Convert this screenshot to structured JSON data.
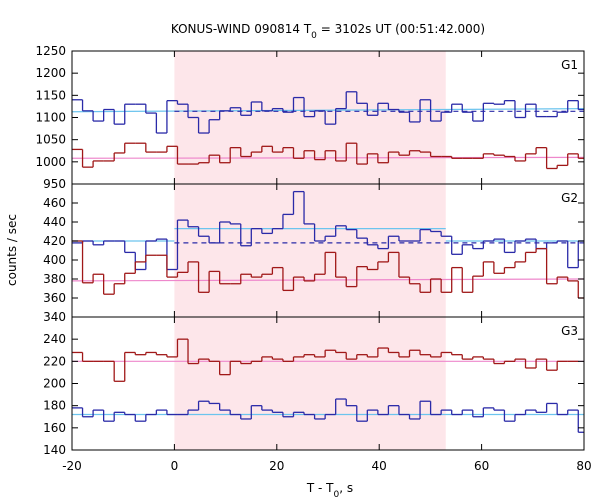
{
  "chart_data": {
    "type": "line",
    "title_main": "KONUS-WIND 090814 T",
    "title_sub": "0",
    "title_rest": " = 3102s UT (00:51:42.000)",
    "xlabel_main": "T - T",
    "xlabel_sub": "0",
    "xlabel_rest": ", s",
    "ylabel": "counts / sec",
    "xlim": [
      -20,
      80
    ],
    "xticks": [
      -20,
      0,
      20,
      40,
      60,
      80
    ],
    "highlight_x": [
      0,
      53
    ],
    "colors": {
      "blue": "#2a2aa8",
      "red": "#a01818",
      "lightblue": "#6cc4ee",
      "pink": "#ee88cc",
      "shade": "#fde6ea"
    },
    "panels": [
      {
        "label": "G1",
        "ylim": [
          950,
          1250
        ],
        "yticks": [
          950,
          1000,
          1050,
          1100,
          1150,
          1200,
          1250
        ],
        "series": [
          {
            "color": "blue",
            "x": [
              -20,
              -17.94,
              -15.88,
              -13.82,
              -11.76,
              -9.7,
              -7.64,
              -5.58,
              -3.52,
              -1.46,
              0.6,
              2.66,
              4.72,
              6.78,
              8.84,
              10.9,
              12.96,
              15.02,
              17.08,
              19.14,
              21.2,
              23.26,
              25.32,
              27.38,
              29.44,
              31.5,
              33.56,
              35.62,
              37.68,
              39.74,
              41.8,
              43.86,
              45.92,
              47.98,
              50.04,
              52.1,
              54.16,
              56.22,
              58.28,
              60.34,
              62.4,
              64.46,
              66.52,
              68.58,
              70.64,
              72.7,
              74.76,
              76.82,
              78.88
            ],
            "values": [
              1140,
              1115,
              1092,
              1118,
              1085,
              1130,
              1130,
              1110,
              1065,
              1138,
              1130,
              1100,
              1065,
              1095,
              1115,
              1122,
              1105,
              1135,
              1115,
              1120,
              1112,
              1145,
              1102,
              1115,
              1085,
              1120,
              1158,
              1132,
              1105,
              1132,
              1118,
              1112,
              1090,
              1140,
              1092,
              1112,
              1130,
              1112,
              1092,
              1132,
              1130,
              1138,
              1100,
              1130,
              1102,
              1102,
              1112,
              1138,
              1118
            ]
          },
          {
            "color": "red",
            "x": [
              -20,
              -17.94,
              -15.88,
              -13.82,
              -11.76,
              -9.7,
              -7.64,
              -5.58,
              -3.52,
              -1.46,
              0.6,
              2.66,
              4.72,
              6.78,
              8.84,
              10.9,
              12.96,
              15.02,
              17.08,
              19.14,
              21.2,
              23.26,
              25.32,
              27.38,
              29.44,
              31.5,
              33.56,
              35.62,
              37.68,
              39.74,
              41.8,
              43.86,
              45.92,
              47.98,
              50.04,
              52.1,
              54.16,
              56.22,
              58.28,
              60.34,
              62.4,
              64.46,
              66.52,
              68.58,
              70.64,
              72.7,
              74.76,
              76.82,
              78.88
            ],
            "values": [
              1028,
              988,
              1002,
              1002,
              1020,
              1042,
              1042,
              1022,
              1022,
              1035,
              995,
              995,
              998,
              1015,
              998,
              1032,
              1012,
              1022,
              1035,
              1022,
              1032,
              1008,
              1025,
              1005,
              1025,
              1002,
              1042,
              995,
              1018,
              998,
              1022,
              1015,
              1025,
              1022,
              1012,
              1012,
              1008,
              1008,
              1008,
              1018,
              1015,
              1012,
              1002,
              1018,
              1032,
              985,
              992,
              1018,
              1008
            ]
          }
        ],
        "fits": [
          {
            "color": "lightblue",
            "x1": -20,
            "x2": 80,
            "y1": 1113,
            "y2": 1120,
            "dash": false
          },
          {
            "color": "blue",
            "x1": 0,
            "x2": 80,
            "y1": 1114,
            "y2": 1114,
            "dash": true
          },
          {
            "color": "pink",
            "x1": -20,
            "x2": 80,
            "y1": 1008,
            "y2": 1010,
            "dash": false
          }
        ]
      },
      {
        "label": "G2",
        "ylim": [
          340,
          480
        ],
        "yticks": [
          340,
          360,
          380,
          400,
          420,
          440,
          460
        ],
        "series": [
          {
            "color": "blue",
            "x": [
              -20,
              -17.94,
              -15.88,
              -13.82,
              -11.76,
              -9.7,
              -7.64,
              -5.58,
              -3.52,
              -1.46,
              0.6,
              2.66,
              4.72,
              6.78,
              8.84,
              10.9,
              12.96,
              15.02,
              17.08,
              19.14,
              21.2,
              23.26,
              25.32,
              27.38,
              29.44,
              31.5,
              33.56,
              35.62,
              37.68,
              39.74,
              41.8,
              43.86,
              45.92,
              47.98,
              50.04,
              52.1,
              54.16,
              56.22,
              58.28,
              60.34,
              62.4,
              64.46,
              66.52,
              68.58,
              70.64,
              72.7,
              74.76,
              76.82,
              78.88
            ],
            "values": [
              418,
              420,
              416,
              420,
              420,
              408,
              390,
              420,
              422,
              390,
              442,
              435,
              425,
              418,
              440,
              438,
              415,
              433,
              428,
              433,
              448,
              472,
              438,
              420,
              425,
              436,
              432,
              423,
              416,
              412,
              425,
              420,
              420,
              432,
              430,
              425,
              406,
              416,
              412,
              420,
              422,
              408,
              420,
              422,
              412,
              418,
              420,
              392,
              420
            ]
          },
          {
            "color": "red",
            "x": [
              -20,
              -17.94,
              -15.88,
              -13.82,
              -11.76,
              -9.7,
              -7.64,
              -5.58,
              -3.52,
              -1.46,
              0.6,
              2.66,
              4.72,
              6.78,
              8.84,
              10.9,
              12.96,
              15.02,
              17.08,
              19.14,
              21.2,
              23.26,
              25.32,
              27.38,
              29.44,
              31.5,
              33.56,
              35.62,
              37.68,
              39.74,
              41.8,
              43.86,
              45.92,
              47.98,
              50.04,
              52.1,
              54.16,
              56.22,
              58.28,
              60.34,
              62.4,
              64.46,
              66.52,
              68.58,
              70.64,
              72.7,
              74.76,
              76.82,
              78.88
            ],
            "values": [
              420,
              376,
              385,
              364,
              375,
              386,
              398,
              405,
              405,
              382,
              387,
              398,
              366,
              388,
              375,
              375,
              385,
              382,
              385,
              392,
              368,
              382,
              378,
              385,
              408,
              382,
              372,
              393,
              390,
              398,
              408,
              382,
              375,
              366,
              380,
              366,
              392,
              366,
              383,
              398,
              386,
              392,
              398,
              408,
              412,
              375,
              382,
              378,
              360
            ]
          }
        ],
        "fits": [
          {
            "color": "lightblue",
            "x1": -20,
            "x2": 0,
            "y1": 420,
            "y2": 420,
            "dash": false
          },
          {
            "color": "lightblue",
            "x1": 0,
            "x2": 53,
            "y1": 433,
            "y2": 433,
            "dash": false
          },
          {
            "color": "lightblue",
            "x1": 53,
            "x2": 80,
            "y1": 420,
            "y2": 420,
            "dash": false
          },
          {
            "color": "blue",
            "x1": 0,
            "x2": 80,
            "y1": 418,
            "y2": 418,
            "dash": true
          },
          {
            "color": "pink",
            "x1": -20,
            "x2": 80,
            "y1": 378,
            "y2": 380,
            "dash": false
          }
        ]
      },
      {
        "label": "G3",
        "ylim": [
          140,
          260
        ],
        "yticks": [
          140,
          160,
          180,
          200,
          220,
          240
        ],
        "series": [
          {
            "color": "red",
            "x": [
              -20,
              -17.94,
              -15.88,
              -13.82,
              -11.76,
              -9.7,
              -7.64,
              -5.58,
              -3.52,
              -1.46,
              0.6,
              2.66,
              4.72,
              6.78,
              8.84,
              10.9,
              12.96,
              15.02,
              17.08,
              19.14,
              21.2,
              23.26,
              25.32,
              27.38,
              29.44,
              31.5,
              33.56,
              35.62,
              37.68,
              39.74,
              41.8,
              43.86,
              45.92,
              47.98,
              50.04,
              52.1,
              54.16,
              56.22,
              58.28,
              60.34,
              62.4,
              64.46,
              66.52,
              68.58,
              70.64,
              72.7,
              74.76,
              76.82
            ],
            "values": [
              228,
              220,
              220,
              220,
              202,
              228,
              226,
              228,
              226,
              224,
              240,
              218,
              222,
              220,
              208,
              220,
              218,
              220,
              224,
              222,
              220,
              224,
              226,
              224,
              230,
              228,
              222,
              226,
              224,
              232,
              228,
              224,
              230,
              226,
              224,
              228,
              226,
              222,
              224,
              222,
              218,
              220,
              222,
              214,
              222,
              212,
              220,
              220
            ]
          },
          {
            "color": "blue",
            "x": [
              -20,
              -17.94,
              -15.88,
              -13.82,
              -11.76,
              -9.7,
              -7.64,
              -5.58,
              -3.52,
              -1.46,
              0.6,
              2.66,
              4.72,
              6.78,
              8.84,
              10.9,
              12.96,
              15.02,
              17.08,
              19.14,
              21.2,
              23.26,
              25.32,
              27.38,
              29.44,
              31.5,
              33.56,
              35.62,
              37.68,
              39.74,
              41.8,
              43.86,
              45.92,
              47.98,
              50.04,
              52.1,
              54.16,
              56.22,
              58.28,
              60.34,
              62.4,
              64.46,
              66.52,
              68.58,
              70.64,
              72.7,
              74.76,
              76.82,
              78.88
            ],
            "values": [
              178,
              170,
              176,
              166,
              174,
              172,
              166,
              172,
              176,
              172,
              172,
              176,
              184,
              182,
              176,
              172,
              168,
              180,
              176,
              174,
              170,
              174,
              172,
              168,
              172,
              186,
              180,
              166,
              176,
              172,
              180,
              172,
              168,
              184,
              172,
              176,
              172,
              176,
              170,
              178,
              176,
              166,
              172,
              176,
              174,
              182,
              172,
              176,
              156
            ]
          }
        ],
        "fits": [
          {
            "color": "pink",
            "x1": -20,
            "x2": 80,
            "y1": 220,
            "y2": 220,
            "dash": false
          },
          {
            "color": "lightblue",
            "x1": -20,
            "x2": 80,
            "y1": 172,
            "y2": 172,
            "dash": false
          }
        ]
      }
    ]
  }
}
